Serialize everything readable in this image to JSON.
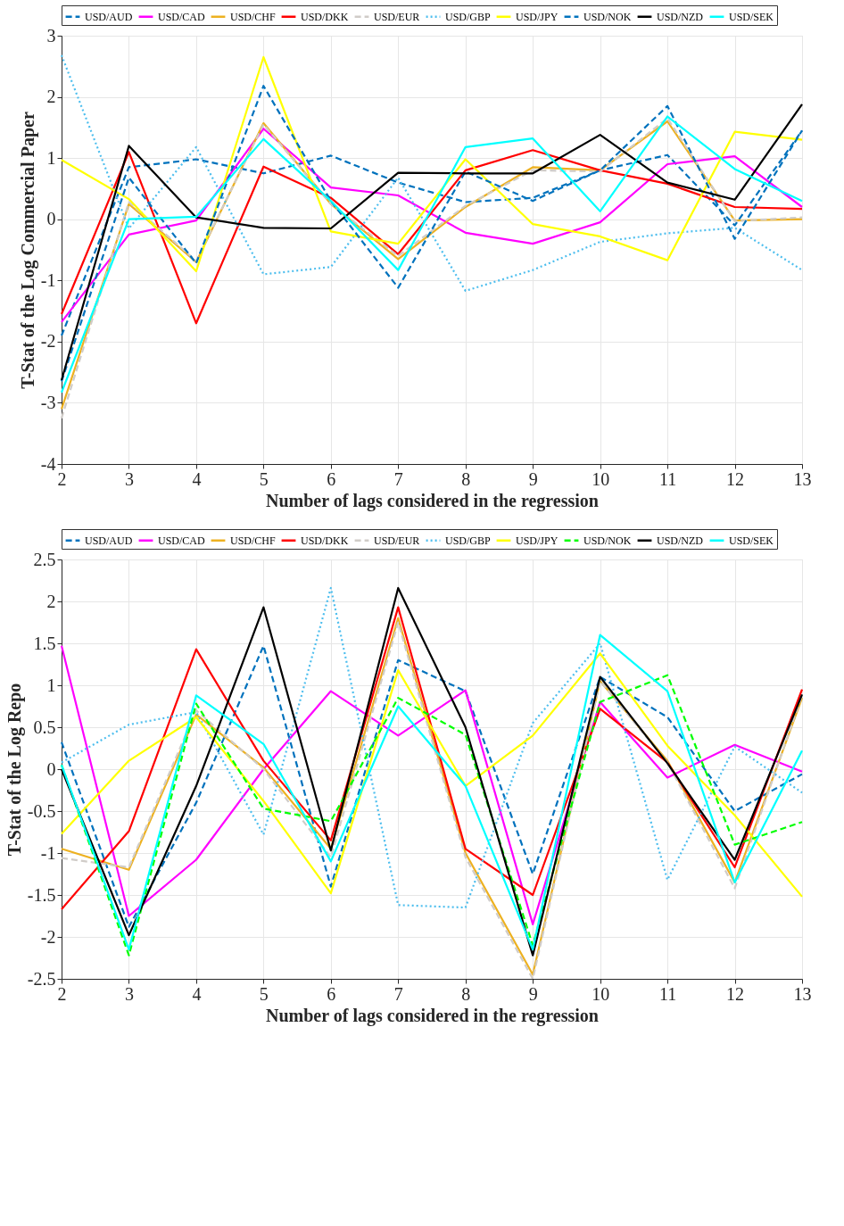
{
  "chart_data": [
    {
      "type": "line",
      "xlabel": "Number of lags considered in the regression",
      "ylabel": "T-Stat of the Log Commercial Paper",
      "x": [
        2,
        3,
        4,
        5,
        6,
        7,
        8,
        9,
        10,
        11,
        12,
        13
      ],
      "xlim": [
        2,
        13
      ],
      "xticks": [
        2,
        3,
        4,
        5,
        6,
        7,
        8,
        9,
        10,
        11,
        12,
        13
      ],
      "ylim": [
        -4,
        3
      ],
      "yticks": [
        -4,
        -3,
        -2,
        -1,
        0,
        1,
        2,
        3
      ],
      "grid": true,
      "legend": "top",
      "series": [
        {
          "name": "USD/AUD",
          "color": "#0072bd",
          "line_style": "dashed",
          "values": [
            -1.9,
            0.85,
            0.98,
            0.75,
            1.04,
            0.6,
            0.28,
            0.35,
            0.8,
            1.05,
            -0.1,
            1.45
          ]
        },
        {
          "name": "USD/CAD",
          "color": "#ff00ff",
          "line_style": "solid",
          "values": [
            -1.68,
            -0.25,
            -0.02,
            1.48,
            0.52,
            0.39,
            -0.22,
            -0.4,
            -0.05,
            0.9,
            1.03,
            0.2
          ]
        },
        {
          "name": "USD/CHF",
          "color": "#edb120",
          "line_style": "solid",
          "values": [
            -3.1,
            0.25,
            -0.7,
            1.57,
            0.25,
            -0.65,
            0.2,
            0.85,
            0.8,
            1.6,
            -0.02,
            0.0
          ]
        },
        {
          "name": "USD/DKK",
          "color": "#ff0000",
          "line_style": "solid",
          "values": [
            -1.55,
            1.1,
            -1.7,
            0.86,
            0.35,
            -0.57,
            0.8,
            1.13,
            0.8,
            0.58,
            0.2,
            0.17
          ]
        },
        {
          "name": "USD/EUR",
          "color": "#d0ccc8",
          "line_style": "dashed",
          "values": [
            -3.25,
            0.28,
            -0.68,
            1.55,
            0.25,
            -0.6,
            0.22,
            0.8,
            0.78,
            1.65,
            -0.03,
            0.03
          ]
        },
        {
          "name": "USD/GBP",
          "color": "#4dbeee",
          "line_style": "dotted",
          "values": [
            2.68,
            -0.15,
            1.18,
            -0.9,
            -0.78,
            0.68,
            -1.17,
            -0.83,
            -0.37,
            -0.23,
            -0.14,
            -0.83
          ]
        },
        {
          "name": "USD/JPY",
          "color": "#ffff00",
          "line_style": "solid",
          "values": [
            0.97,
            0.33,
            -0.85,
            2.65,
            -0.2,
            -0.4,
            0.98,
            -0.08,
            -0.28,
            -0.67,
            1.43,
            1.3
          ]
        },
        {
          "name": "USD/NOK",
          "color": "#0072bd",
          "line_style": "dashed",
          "values": [
            -2.65,
            0.68,
            -0.72,
            2.18,
            0.3,
            -1.12,
            0.78,
            0.3,
            0.8,
            1.85,
            -0.32,
            1.45
          ]
        },
        {
          "name": "USD/NZD",
          "color": "#000000",
          "line_style": "solid",
          "values": [
            -2.63,
            1.2,
            0.03,
            -0.14,
            -0.15,
            0.76,
            0.75,
            0.75,
            1.38,
            0.6,
            0.32,
            1.88
          ]
        },
        {
          "name": "USD/SEK",
          "color": "#00ffff",
          "line_style": "solid",
          "values": [
            -2.83,
            0.0,
            0.04,
            1.31,
            0.3,
            -0.83,
            1.18,
            1.32,
            0.13,
            1.68,
            0.82,
            0.3
          ]
        }
      ]
    },
    {
      "type": "line",
      "xlabel": "Number of lags considered in the regression",
      "ylabel": "T-Stat of the Log Repo",
      "x": [
        2,
        3,
        4,
        5,
        6,
        7,
        8,
        9,
        10,
        11,
        12,
        13
      ],
      "xlim": [
        2,
        13
      ],
      "xticks": [
        2,
        3,
        4,
        5,
        6,
        7,
        8,
        9,
        10,
        11,
        12,
        13
      ],
      "ylim": [
        -2.5,
        2.5
      ],
      "yticks": [
        -2.5,
        -2,
        -1.5,
        -1,
        -0.5,
        0,
        0.5,
        1,
        1.5,
        2,
        2.5
      ],
      "grid": true,
      "legend": "top",
      "series": [
        {
          "name": "USD/AUD",
          "color": "#0072bd",
          "line_style": "dashed",
          "values": [
            0.32,
            -1.88,
            -0.4,
            1.47,
            -1.4,
            1.3,
            0.93,
            -1.25,
            1.1,
            0.62,
            -0.5,
            -0.06
          ]
        },
        {
          "name": "USD/CAD",
          "color": "#ff00ff",
          "line_style": "solid",
          "values": [
            1.47,
            -1.75,
            -1.08,
            0.0,
            0.93,
            0.4,
            0.94,
            -1.85,
            0.8,
            -0.1,
            0.29,
            -0.03
          ]
        },
        {
          "name": "USD/CHF",
          "color": "#edb120",
          "line_style": "solid",
          "values": [
            -0.95,
            -1.2,
            0.65,
            0.02,
            -0.95,
            1.8,
            -1.0,
            -2.45,
            1.05,
            0.1,
            -1.35,
            0.85
          ]
        },
        {
          "name": "USD/DKK",
          "color": "#ff0000",
          "line_style": "solid",
          "values": [
            -1.67,
            -0.74,
            1.43,
            0.1,
            -0.85,
            1.93,
            -0.95,
            -1.5,
            0.72,
            0.08,
            -1.17,
            0.95
          ]
        },
        {
          "name": "USD/EUR",
          "color": "#d0ccc8",
          "line_style": "dashed",
          "values": [
            -1.06,
            -1.17,
            0.7,
            0.0,
            -1.05,
            1.75,
            -1.05,
            -2.5,
            1.05,
            0.08,
            -1.42,
            0.88
          ]
        },
        {
          "name": "USD/GBP",
          "color": "#4dbeee",
          "line_style": "dotted",
          "values": [
            0.08,
            0.53,
            0.68,
            -0.78,
            2.16,
            -1.62,
            -1.65,
            0.55,
            1.5,
            -1.32,
            0.27,
            -0.28
          ]
        },
        {
          "name": "USD/JPY",
          "color": "#ffff00",
          "line_style": "solid",
          "values": [
            -0.77,
            0.1,
            0.62,
            -0.38,
            -1.48,
            1.18,
            -0.2,
            0.4,
            1.38,
            0.28,
            -0.55,
            -1.52
          ]
        },
        {
          "name": "USD/NOK",
          "color": "#00ff00",
          "line_style": "dashed",
          "values": [
            0.05,
            -2.22,
            0.78,
            -0.47,
            -0.62,
            0.85,
            0.41,
            -2.1,
            0.8,
            1.12,
            -0.9,
            -0.63
          ]
        },
        {
          "name": "USD/NZD",
          "color": "#000000",
          "line_style": "solid",
          "values": [
            0.0,
            -1.98,
            -0.2,
            1.93,
            -0.97,
            2.16,
            0.5,
            -2.22,
            1.1,
            0.07,
            -1.08,
            0.89
          ]
        },
        {
          "name": "USD/SEK",
          "color": "#00ffff",
          "line_style": "solid",
          "values": [
            0.05,
            -2.15,
            0.88,
            0.3,
            -1.1,
            0.75,
            -0.2,
            -2.15,
            1.6,
            0.93,
            -1.35,
            0.22
          ]
        }
      ]
    }
  ]
}
